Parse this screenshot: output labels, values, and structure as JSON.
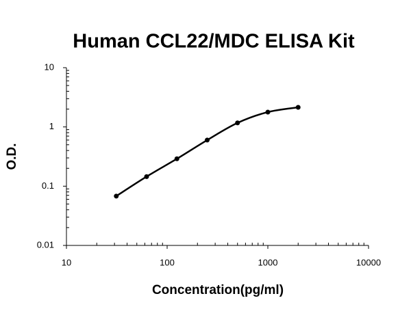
{
  "chart_data": {
    "type": "scatter",
    "title": "Human CCL22/MDC ELISA Kit",
    "x_label": "Concentration(pg/ml)",
    "y_label": "O.D.",
    "x": [
      31.25,
      62.5,
      125,
      250,
      500,
      1000,
      2000
    ],
    "values": [
      0.068,
      0.145,
      0.29,
      0.6,
      1.17,
      1.78,
      2.14
    ],
    "color": "#000000",
    "xscale": "log",
    "yscale": "log",
    "xlim": [
      10,
      10000
    ],
    "ylim": [
      0.01,
      10
    ],
    "xticks": [
      10,
      100,
      1000,
      10000
    ],
    "yticks": [
      0.01,
      0.1,
      1,
      10
    ],
    "fit_line": true
  }
}
